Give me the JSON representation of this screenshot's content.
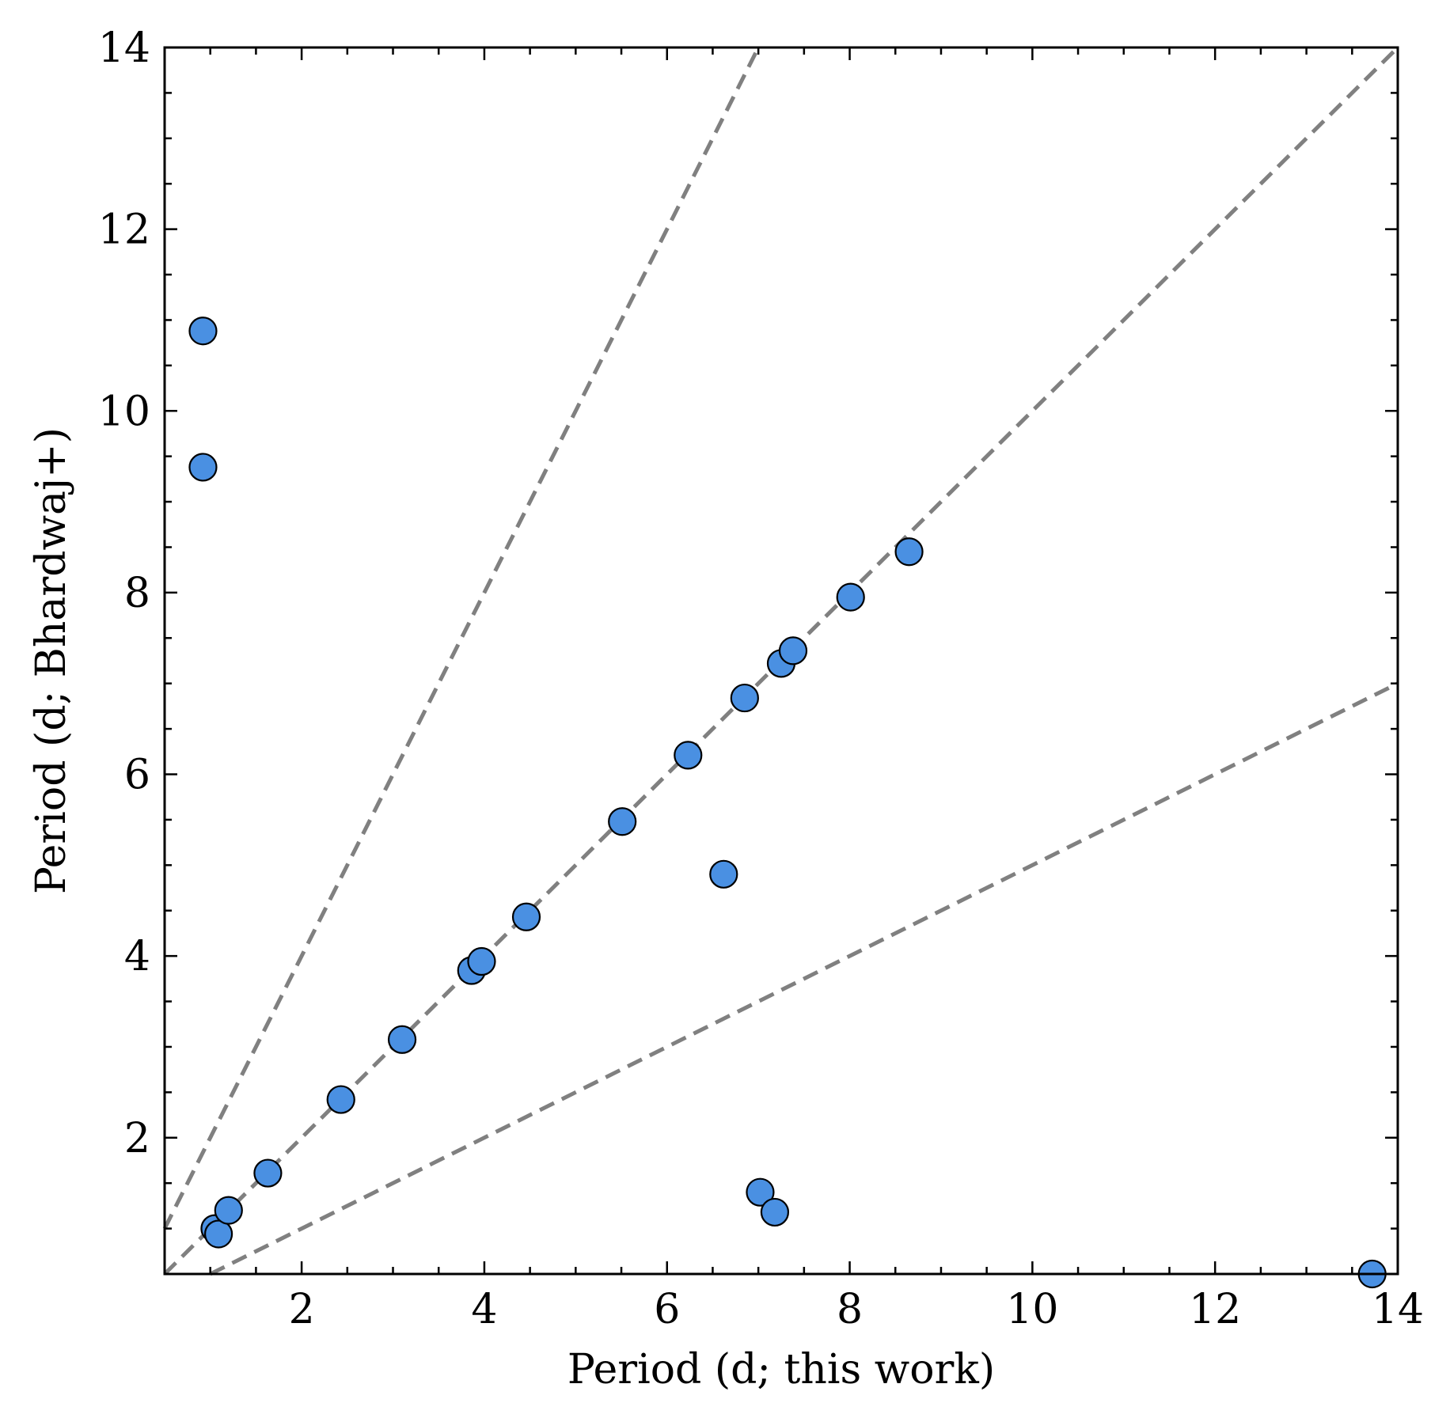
{
  "chart_data": {
    "type": "scatter",
    "title": "",
    "xlabel": "Period (d; this work)",
    "ylabel": "Period (d; Bhardwaj+)",
    "xlim": [
      0.5,
      14
    ],
    "ylim": [
      0.5,
      14
    ],
    "x_ticks": [
      2,
      4,
      6,
      8,
      10,
      12,
      14
    ],
    "y_ticks": [
      2,
      4,
      6,
      8,
      10,
      12,
      14
    ],
    "minor_tick_step": 0.5,
    "grid": false,
    "legend": "none",
    "reference_lines": [
      {
        "slope": 2,
        "style": "dashed",
        "color": "#808080"
      },
      {
        "slope": 1,
        "style": "dashed",
        "color": "#808080"
      },
      {
        "slope": 0.5,
        "style": "dashed",
        "color": "#808080"
      }
    ],
    "marker_color": "#4a90e2",
    "marker_edge_color": "#000000",
    "points": [
      {
        "x": 0.92,
        "y": 10.88
      },
      {
        "x": 0.92,
        "y": 9.38
      },
      {
        "x": 1.05,
        "y": 1.0
      },
      {
        "x": 1.09,
        "y": 0.94
      },
      {
        "x": 1.2,
        "y": 1.2
      },
      {
        "x": 1.63,
        "y": 1.61
      },
      {
        "x": 2.43,
        "y": 2.42
      },
      {
        "x": 3.1,
        "y": 3.08
      },
      {
        "x": 3.86,
        "y": 3.84
      },
      {
        "x": 3.97,
        "y": 3.94
      },
      {
        "x": 4.46,
        "y": 4.43
      },
      {
        "x": 5.51,
        "y": 5.48
      },
      {
        "x": 6.23,
        "y": 6.21
      },
      {
        "x": 6.62,
        "y": 4.9
      },
      {
        "x": 6.85,
        "y": 6.84
      },
      {
        "x": 7.25,
        "y": 7.22
      },
      {
        "x": 7.38,
        "y": 7.36
      },
      {
        "x": 8.01,
        "y": 7.95
      },
      {
        "x": 8.65,
        "y": 8.45
      },
      {
        "x": 7.02,
        "y": 1.4
      },
      {
        "x": 7.18,
        "y": 1.18
      },
      {
        "x": 13.72,
        "y": 0.5
      }
    ]
  }
}
